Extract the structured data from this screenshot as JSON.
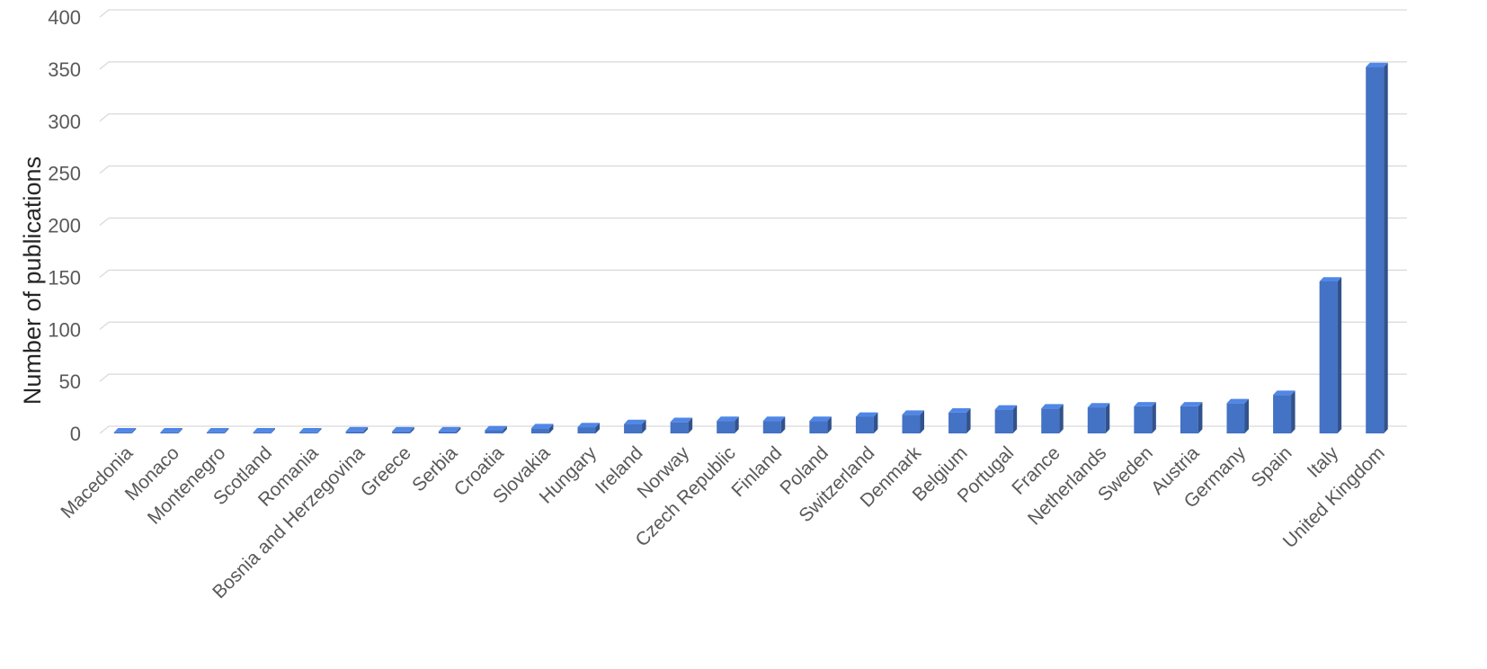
{
  "chart_data": {
    "type": "bar",
    "style": "3d-column",
    "title": "",
    "xlabel": "",
    "ylabel": "Number of publications",
    "ylim": [
      0,
      400
    ],
    "yticks": [
      0,
      50,
      100,
      150,
      200,
      250,
      300,
      350,
      400
    ],
    "grid": true,
    "legend": "none",
    "bar_color": "#4472C4",
    "categories": [
      "Macedonia",
      "Monaco",
      "Montenegro",
      "Scotland",
      "Romania",
      "Bosnia and Herzegovina",
      "Greece",
      "Serbia",
      "Croatia",
      "Slovakia",
      "Hungary",
      "Ireland",
      "Norway",
      "Czech Republic",
      "Finland",
      "Poland",
      "Switzerland",
      "Denmark",
      "Belgium",
      "Portugal",
      "France",
      "Netherlands",
      "Sweden",
      "Austria",
      "Germany",
      "Spain",
      "Italy",
      "United Kingdom"
    ],
    "values": [
      1,
      1,
      1,
      1,
      1,
      2,
      2,
      2,
      3,
      5,
      6,
      9,
      11,
      12,
      12,
      12,
      16,
      18,
      20,
      23,
      24,
      25,
      26,
      26,
      29,
      37,
      146,
      352
    ]
  }
}
